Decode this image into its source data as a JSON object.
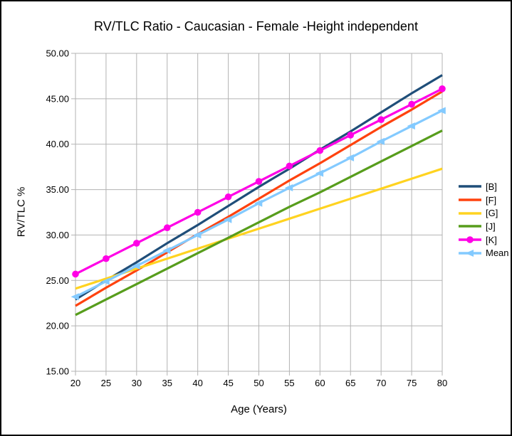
{
  "chart_data": {
    "type": "line",
    "title": "RV/TLC Ratio - Caucasian - Female -Height independent",
    "xlabel": "Age (Years)",
    "ylabel": "RV/TLC %",
    "x": [
      20,
      25,
      30,
      35,
      40,
      45,
      50,
      55,
      60,
      65,
      70,
      75,
      80
    ],
    "xlim": [
      20,
      80
    ],
    "ylim": [
      15,
      50
    ],
    "y_ticks": [
      15,
      20,
      25,
      30,
      35,
      40,
      45,
      50
    ],
    "y_tick_format": "2dp",
    "grid": true,
    "legend_position": "right",
    "colors": {
      "grid": "#b3b3b3",
      "text": "#000000"
    },
    "series": [
      {
        "name": "[B]",
        "color": "#1f4e79",
        "marker": "none",
        "values": [
          22.9,
          25.0,
          27.0,
          29.1,
          31.1,
          33.2,
          35.3,
          37.3,
          39.4,
          41.4,
          43.5,
          45.6,
          47.6
        ]
      },
      {
        "name": "[F]",
        "color": "#ff420e",
        "marker": "none",
        "values": [
          22.2,
          24.2,
          26.1,
          28.1,
          30.1,
          32.0,
          34.0,
          36.0,
          37.9,
          39.9,
          41.9,
          43.8,
          45.8
        ]
      },
      {
        "name": "[G]",
        "color": "#ffd320",
        "marker": "none",
        "values": [
          24.1,
          25.2,
          26.3,
          27.4,
          28.5,
          29.6,
          30.7,
          31.8,
          32.9,
          34.0,
          35.1,
          36.2,
          37.3
        ]
      },
      {
        "name": "[J]",
        "color": "#579d1c",
        "marker": "none",
        "values": [
          21.2,
          22.9,
          24.6,
          26.3,
          28.0,
          29.7,
          31.4,
          33.1,
          34.7,
          36.4,
          38.1,
          39.8,
          41.5
        ]
      },
      {
        "name": "[K]",
        "color": "#ff00e6",
        "marker": "circle",
        "values": [
          25.7,
          27.4,
          29.1,
          30.8,
          32.5,
          34.2,
          35.9,
          37.6,
          39.3,
          41.0,
          42.7,
          44.4,
          46.1
        ]
      },
      {
        "name": "Mean",
        "color": "#83caff",
        "marker": "triangle-left",
        "values": [
          23.2,
          24.9,
          26.6,
          28.3,
          30.0,
          31.7,
          33.5,
          35.2,
          36.8,
          38.5,
          40.3,
          42.0,
          43.7
        ]
      }
    ]
  }
}
